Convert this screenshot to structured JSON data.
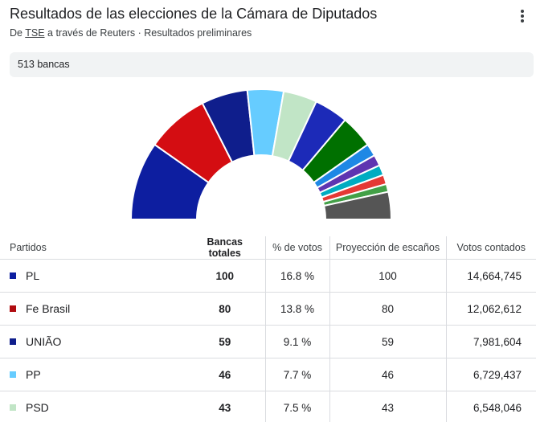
{
  "header": {
    "title": "Resultados de las elecciones de la Cámara de Diputados",
    "source_prefix": "De ",
    "source_link": "TSE",
    "source_suffix": " a través de Reuters · Resultados preliminares",
    "more_icon": "more-vert-icon"
  },
  "summary": {
    "seats_label": "513 bancas"
  },
  "chart_data": {
    "type": "pie",
    "style": "half-donut",
    "total": 513,
    "segments": [
      {
        "seats": 100,
        "color": "#0d1ea0"
      },
      {
        "seats": 80,
        "color": "#d40d12"
      },
      {
        "seats": 59,
        "color": "#0f1e8c"
      },
      {
        "seats": 46,
        "color": "#66ccff"
      },
      {
        "seats": 43,
        "color": "#c1e5c6"
      },
      {
        "seats": 43,
        "color": "#1c2ab8"
      },
      {
        "seats": 42,
        "color": "#007000"
      },
      {
        "seats": 16,
        "color": "#1e88e5"
      },
      {
        "seats": 14,
        "color": "#5e35b1"
      },
      {
        "seats": 13,
        "color": "#00acc1"
      },
      {
        "seats": 12,
        "color": "#e53935"
      },
      {
        "seats": 10,
        "color": "#43a047"
      },
      {
        "seats": 35,
        "color": "#555555"
      }
    ]
  },
  "table": {
    "headers": {
      "party": "Partidos",
      "total_seats": "Bancas totales",
      "vote_pct": "% de votos",
      "projection": "Proyección de escaños",
      "votes_counted": "Votos contados"
    },
    "rows": [
      {
        "party": "PL",
        "color": "#0d1ea0",
        "total_seats": "100",
        "vote_pct": "16.8 %",
        "projection": "100",
        "votes": "14,664,745"
      },
      {
        "party": "Fe Brasil",
        "color": "#b00c10",
        "total_seats": "80",
        "vote_pct": "13.8 %",
        "projection": "80",
        "votes": "12,062,612"
      },
      {
        "party": "UNIÃO",
        "color": "#0f1e8c",
        "total_seats": "59",
        "vote_pct": "9.1 %",
        "projection": "59",
        "votes": "7,981,604"
      },
      {
        "party": "PP",
        "color": "#66ccff",
        "total_seats": "46",
        "vote_pct": "7.7 %",
        "projection": "46",
        "votes": "6,729,437"
      },
      {
        "party": "PSD",
        "color": "#c1e5c6",
        "total_seats": "43",
        "vote_pct": "7.5 %",
        "projection": "43",
        "votes": "6,548,046"
      }
    ]
  }
}
